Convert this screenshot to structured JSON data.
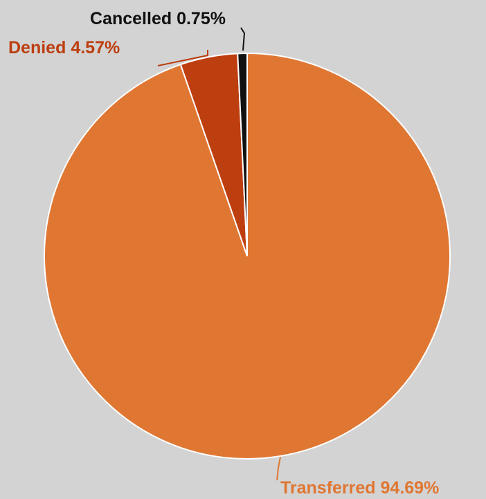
{
  "chart_data": {
    "type": "pie",
    "categories": [
      "Transferred",
      "Denied",
      "Cancelled"
    ],
    "values": [
      94.69,
      4.57,
      0.75
    ],
    "value_labels": [
      "94.69%",
      "4.57%",
      "0.75%"
    ],
    "colors": [
      "#df7733",
      "#bd3e0f",
      "#111111"
    ]
  }
}
